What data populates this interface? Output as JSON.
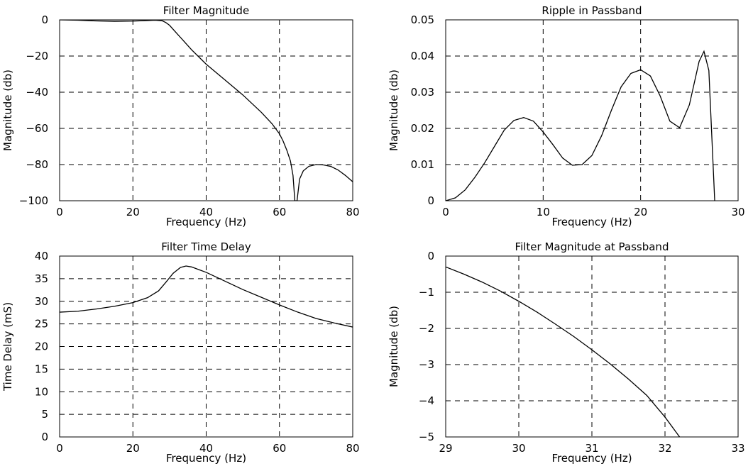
{
  "chart_data": [
    {
      "type": "line",
      "title": "Filter Magnitude",
      "xlabel": "Frequency (Hz)",
      "ylabel": "Magnitude (db)",
      "xlim": [
        0,
        80
      ],
      "ylim": [
        -100,
        0
      ],
      "xticks": [
        0,
        20,
        40,
        60,
        80
      ],
      "yticks": [
        0,
        -20,
        -40,
        -60,
        -80,
        -100
      ],
      "xtick_labels": [
        "0",
        "20",
        "40",
        "60",
        "80"
      ],
      "ytick_labels": [
        "0",
        "−20",
        "−40",
        "−60",
        "−80",
        "−100"
      ],
      "grid": true,
      "series": [
        {
          "x": [
            0,
            5,
            10,
            15,
            20,
            24,
            26,
            28,
            29,
            30,
            32,
            34,
            36,
            38,
            40,
            45,
            50,
            55,
            58,
            60,
            61,
            62,
            63,
            63.7,
            64.2,
            64.8,
            65.5,
            66.5,
            68,
            70,
            72,
            74,
            76,
            78,
            80
          ],
          "y": [
            0,
            -0.2,
            -0.6,
            -0.8,
            -0.7,
            -0.4,
            -0.2,
            -0.5,
            -1.5,
            -3,
            -7.5,
            -12,
            -16.5,
            -20.5,
            -24.5,
            -33,
            -41.5,
            -51,
            -57.5,
            -63,
            -67,
            -72,
            -78,
            -86,
            -100,
            -100,
            -88,
            -83.5,
            -81,
            -80,
            -80.2,
            -81,
            -83,
            -86,
            -89.5
          ]
        }
      ]
    },
    {
      "type": "line",
      "title": "Ripple in Passband",
      "xlabel": "Frequency (Hz)",
      "ylabel": "Magnitude (db)",
      "xlim": [
        0,
        30
      ],
      "ylim": [
        0,
        0.05
      ],
      "xticks": [
        0,
        10,
        20,
        30
      ],
      "yticks": [
        0,
        0.01,
        0.02,
        0.03,
        0.04,
        0.05
      ],
      "xtick_labels": [
        "0",
        "10",
        "20",
        "30"
      ],
      "ytick_labels": [
        "0",
        "0.01",
        "0.02",
        "0.03",
        "0.04",
        "0.05"
      ],
      "grid": true,
      "series": [
        {
          "x": [
            0,
            1,
            2,
            3,
            4,
            5,
            6,
            7,
            8,
            9,
            10,
            11,
            12,
            13,
            14,
            15,
            16,
            17,
            18,
            19,
            20,
            21,
            22,
            23,
            24,
            25,
            26,
            26.5,
            27,
            27.3,
            27.6
          ],
          "y": [
            0,
            0.0008,
            0.003,
            0.0065,
            0.0105,
            0.015,
            0.0195,
            0.0222,
            0.023,
            0.022,
            0.019,
            0.0155,
            0.0118,
            0.0098,
            0.01,
            0.0125,
            0.018,
            0.025,
            0.0315,
            0.0352,
            0.0362,
            0.0345,
            0.029,
            0.022,
            0.0202,
            0.0265,
            0.0385,
            0.0413,
            0.036,
            0.018,
            0
          ]
        }
      ]
    },
    {
      "type": "line",
      "title": "Filter Time Delay",
      "xlabel": "Frequency (Hz)",
      "ylabel": "Time Delay (mS)",
      "xlim": [
        0,
        80
      ],
      "ylim": [
        0,
        40
      ],
      "xticks": [
        0,
        20,
        40,
        60,
        80
      ],
      "yticks": [
        0,
        5,
        10,
        15,
        20,
        25,
        30,
        35,
        40
      ],
      "xtick_labels": [
        "0",
        "20",
        "40",
        "60",
        "80"
      ],
      "ytick_labels": [
        "0",
        "5",
        "10",
        "15",
        "20",
        "25",
        "30",
        "35",
        "40"
      ],
      "grid": true,
      "series": [
        {
          "x": [
            0,
            5,
            10,
            15,
            20,
            24,
            27,
            29,
            31,
            33,
            34.5,
            36,
            38,
            40,
            45,
            50,
            55,
            60,
            65,
            70,
            75,
            80
          ],
          "y": [
            27.6,
            27.8,
            28.3,
            28.9,
            29.7,
            30.8,
            32.3,
            34.2,
            36.2,
            37.5,
            37.8,
            37.6,
            37,
            36.4,
            34.5,
            32.6,
            30.9,
            29.2,
            27.6,
            26.2,
            25.2,
            24.3
          ]
        }
      ]
    },
    {
      "type": "line",
      "title": "Filter Magnitude at Passband",
      "xlabel": "Frequency (Hz)",
      "ylabel": "Magnitude (db)",
      "xlim": [
        29,
        33
      ],
      "ylim": [
        -5,
        0
      ],
      "xticks": [
        29,
        30,
        31,
        32,
        33
      ],
      "yticks": [
        0,
        -1,
        -2,
        -3,
        -4,
        -5
      ],
      "xtick_labels": [
        "29",
        "30",
        "31",
        "32",
        "33"
      ],
      "ytick_labels": [
        "0",
        "−1",
        "−2",
        "−3",
        "−4",
        "−5"
      ],
      "grid": true,
      "series": [
        {
          "x": [
            29,
            29.25,
            29.5,
            29.75,
            30,
            30.25,
            30.5,
            30.75,
            31,
            31.25,
            31.5,
            31.75,
            32,
            32.2
          ],
          "y": [
            -0.3,
            -0.5,
            -0.72,
            -0.97,
            -1.25,
            -1.55,
            -1.88,
            -2.22,
            -2.59,
            -2.98,
            -3.4,
            -3.85,
            -4.45,
            -5
          ]
        }
      ]
    }
  ]
}
